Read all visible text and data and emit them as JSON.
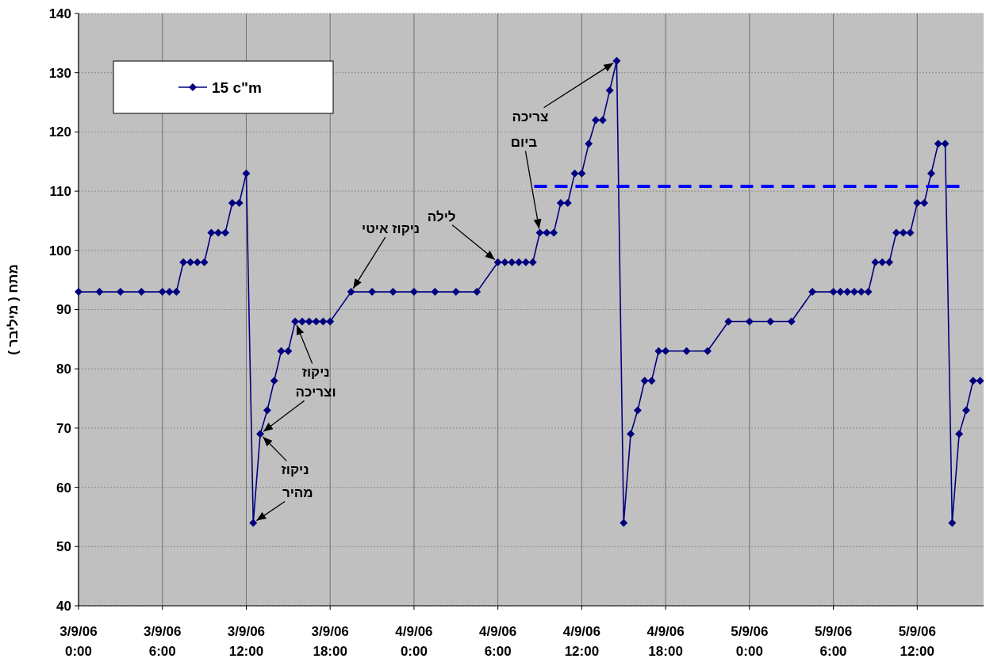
{
  "chart_data": {
    "type": "line",
    "ylabel": "מתח ( מיליבר )",
    "xlim": [
      "--09-03T00:00",
      "--09-05T16:45"
    ],
    "ylim": [
      40,
      140
    ],
    "xticks": [
      {
        "value": "--09-03T00:00",
        "label": "3/9/06 0:00"
      },
      {
        "value": "--09-03T06:00",
        "label": "3/9/06 6:00"
      },
      {
        "value": "--09-03T12:00",
        "label": "3/9/06 12:00"
      },
      {
        "value": "--09-03T18:00",
        "label": "3/9/06 18:00"
      },
      {
        "value": "--09-04T00:00",
        "label": "4/9/06 0:00"
      },
      {
        "value": "--09-04T06:00",
        "label": "4/9/06 6:00"
      },
      {
        "value": "--09-04T12:00",
        "label": "4/9/06 12:00"
      },
      {
        "value": "--09-04T18:00",
        "label": "4/9/06 18:00"
      },
      {
        "value": "--09-05T00:00",
        "label": "5/9/06 0:00"
      },
      {
        "value": "--09-05T06:00",
        "label": "5/9/06 6:00"
      },
      {
        "value": "--09-05T12:00",
        "label": "5/9/06 12:00"
      }
    ],
    "yticks": [
      40,
      50,
      60,
      70,
      80,
      90,
      100,
      110,
      120,
      130,
      140
    ],
    "grid": true,
    "legend": "top left",
    "marker": "diamond",
    "line_style": "solid",
    "series": [
      {
        "name": "15 c\"m",
        "color": "#000080",
        "x": [
          "--09-03T00:00",
          "--09-03T01:30",
          "--09-03T03:00",
          "--09-03T04:30",
          "--09-03T06:00",
          "--09-03T06:30",
          "--09-03T07:00",
          "--09-03T07:30",
          "--09-03T08:00",
          "--09-03T08:30",
          "--09-03T09:00",
          "--09-03T09:30",
          "--09-03T10:00",
          "--09-03T10:30",
          "--09-03T11:00",
          "--09-03T11:30",
          "--09-03T12:00",
          "--09-03T12:30",
          "--09-03T13:00",
          "--09-03T13:30",
          "--09-03T14:00",
          "--09-03T14:30",
          "--09-03T15:00",
          "--09-03T15:30",
          "--09-03T16:00",
          "--09-03T16:30",
          "--09-03T17:00",
          "--09-03T17:30",
          "--09-03T18:00",
          "--09-03T19:30",
          "--09-03T21:00",
          "--09-03T22:30",
          "--09-04T00:00",
          "--09-04T01:30",
          "--09-04T03:00",
          "--09-04T04:30",
          "--09-04T06:00",
          "--09-04T06:30",
          "--09-04T07:00",
          "--09-04T07:30",
          "--09-04T08:00",
          "--09-04T08:30",
          "--09-04T09:00",
          "--09-04T09:30",
          "--09-04T10:00",
          "--09-04T10:30",
          "--09-04T11:00",
          "--09-04T11:30",
          "--09-04T12:00",
          "--09-04T12:30",
          "--09-04T13:00",
          "--09-04T13:30",
          "--09-04T14:00",
          "--09-04T14:30",
          "--09-04T15:00",
          "--09-04T15:30",
          "--09-04T16:00",
          "--09-04T16:30",
          "--09-04T17:00",
          "--09-04T17:30",
          "--09-04T18:00",
          "--09-04T19:30",
          "--09-04T21:00",
          "--09-04T22:30",
          "--09-05T00:00",
          "--09-05T01:30",
          "--09-05T03:00",
          "--09-05T04:30",
          "--09-05T06:00",
          "--09-05T06:30",
          "--09-05T07:00",
          "--09-05T07:30",
          "--09-05T08:00",
          "--09-05T08:30",
          "--09-05T09:00",
          "--09-05T09:30",
          "--09-05T10:00",
          "--09-05T10:30",
          "--09-05T11:00",
          "--09-05T11:30",
          "--09-05T12:00",
          "--09-05T12:30",
          "--09-05T13:00",
          "--09-05T13:30",
          "--09-05T14:00",
          "--09-05T14:30",
          "--09-05T15:00",
          "--09-05T15:30",
          "--09-05T16:00",
          "--09-05T16:30"
        ],
        "values": [
          93,
          93,
          93,
          93,
          93,
          93,
          93,
          98,
          98,
          98,
          98,
          103,
          103,
          103,
          108,
          108,
          113,
          54,
          69,
          73,
          78,
          83,
          83,
          88,
          88,
          88,
          88,
          88,
          88,
          93,
          93,
          93,
          93,
          93,
          93,
          93,
          98,
          98,
          98,
          98,
          98,
          98,
          103,
          103,
          103,
          108,
          108,
          113,
          113,
          118,
          122,
          122,
          127,
          132,
          54,
          69,
          73,
          78,
          78,
          83,
          83,
          83,
          83,
          88,
          88,
          88,
          88,
          93,
          93,
          93,
          93,
          93,
          93,
          93,
          98,
          98,
          98,
          103,
          103,
          103,
          108,
          108,
          113,
          118,
          118,
          54,
          69,
          73,
          78,
          78
        ]
      },
      {
        "type": "line",
        "color": "#0000ff",
        "line_style": "dashed",
        "marker": "none",
        "x": [
          "--09-04T08:36",
          "--09-05T15:12"
        ],
        "values": [
          110.8,
          110.8
        ]
      }
    ],
    "annotations": [
      {
        "text": "ניקוז",
        "x": "--09-03T15:30",
        "y": 88
      },
      {
        "text": "וצריכה",
        "x": "--09-03T13:00",
        "y": 69
      },
      {
        "text": "ניקוז",
        "x": "--09-03T13:00",
        "y": 69
      },
      {
        "text": "מהיר",
        "x": "--09-03T12:30",
        "y": 54
      },
      {
        "text": "ניקוז איטי",
        "x": "--09-03T19:30",
        "y": 93
      },
      {
        "text": "לילה",
        "x": "--09-04T06:00",
        "y": 98
      },
      {
        "text": "צריכה",
        "x": "--09-04T14:30",
        "y": 132
      },
      {
        "text": "ביום",
        "x": "--09-04T09:00",
        "y": 103
      }
    ]
  }
}
